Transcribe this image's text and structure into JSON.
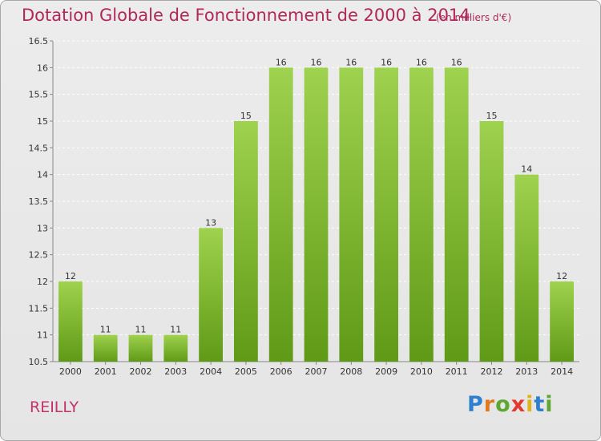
{
  "chart_data": {
    "type": "bar",
    "title": "Dotation Globale de Fonctionnement de 2000 à 2014",
    "subtitle": "(en milliers d'€)",
    "categories": [
      "2000",
      "2001",
      "2002",
      "2003",
      "2004",
      "2005",
      "2006",
      "2007",
      "2008",
      "2009",
      "2010",
      "2011",
      "2012",
      "2013",
      "2014"
    ],
    "values": [
      12,
      11,
      11,
      11,
      13,
      15,
      16,
      16,
      16,
      16,
      16,
      16,
      15,
      14,
      12
    ],
    "ylim": [
      10.5,
      16.5
    ],
    "yticks": [
      "10.5",
      "11",
      "11.5",
      "12",
      "12.5",
      "13",
      "13.5",
      "14",
      "14.5",
      "15",
      "15.5",
      "16",
      "16.5"
    ],
    "grid": true,
    "bar_color_top": "#9fd24e",
    "bar_color_bottom": "#5f9a16"
  },
  "place_name": "REILLY",
  "logo": {
    "letters": [
      "P",
      "r",
      "o",
      "x",
      "i",
      "t",
      "i"
    ],
    "colors": [
      "#2f7fd1",
      "#e07a1c",
      "#5ca832",
      "#e23a2c",
      "#e0b21c",
      "#2f7fd1",
      "#5ca832"
    ]
  }
}
